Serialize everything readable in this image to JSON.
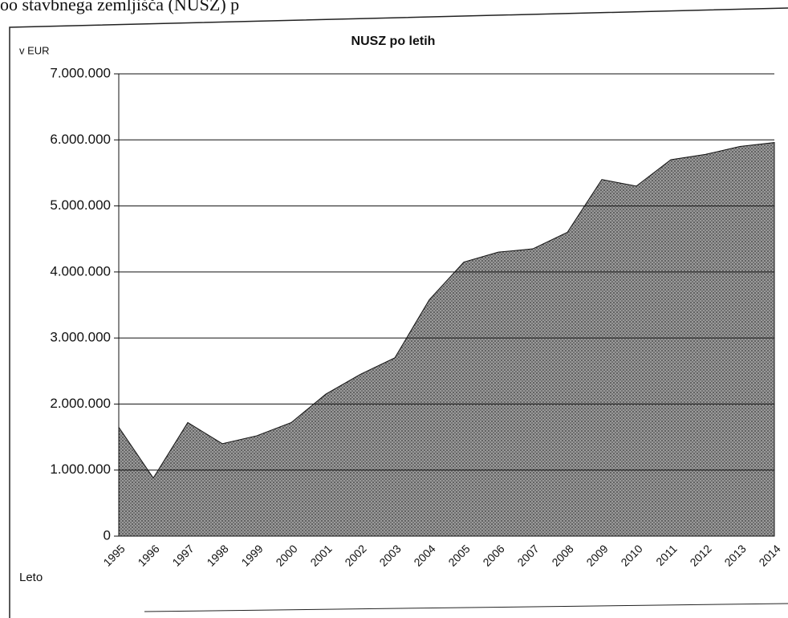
{
  "caption": "oo stavbnega zemljišča (NUSZ) p",
  "chart_data": {
    "type": "area",
    "title": "NUSZ po letih",
    "y_label": "v EUR",
    "x_label": "Leto",
    "categories": [
      "1995",
      "1996",
      "1997",
      "1998",
      "1999",
      "2000",
      "2001",
      "2002",
      "2003",
      "2004",
      "2005",
      "2006",
      "2007",
      "2008",
      "2009",
      "2010",
      "2011",
      "2012",
      "2013",
      "2014"
    ],
    "values": [
      1650000,
      880000,
      1720000,
      1400000,
      1520000,
      1720000,
      2150000,
      2450000,
      2700000,
      3580000,
      4150000,
      4300000,
      4350000,
      4600000,
      5400000,
      5300000,
      5700000,
      5780000,
      5900000,
      5960000
    ],
    "color": "#8a8a8a",
    "ylim": [
      0,
      7000000
    ],
    "yticks": [
      0,
      {
        "value": 1000000,
        "label": "1.000.000"
      },
      {
        "value": 2000000,
        "label": "2.000.000"
      },
      {
        "value": 3000000,
        "label": "3.000.000"
      },
      {
        "value": 4000000,
        "label": "4.000.000"
      },
      {
        "value": 5000000,
        "label": "5.000.000"
      },
      {
        "value": 6000000,
        "label": "6.000.000"
      },
      {
        "value": 7000000,
        "label": "7.000.000"
      }
    ],
    "grid": true
  }
}
